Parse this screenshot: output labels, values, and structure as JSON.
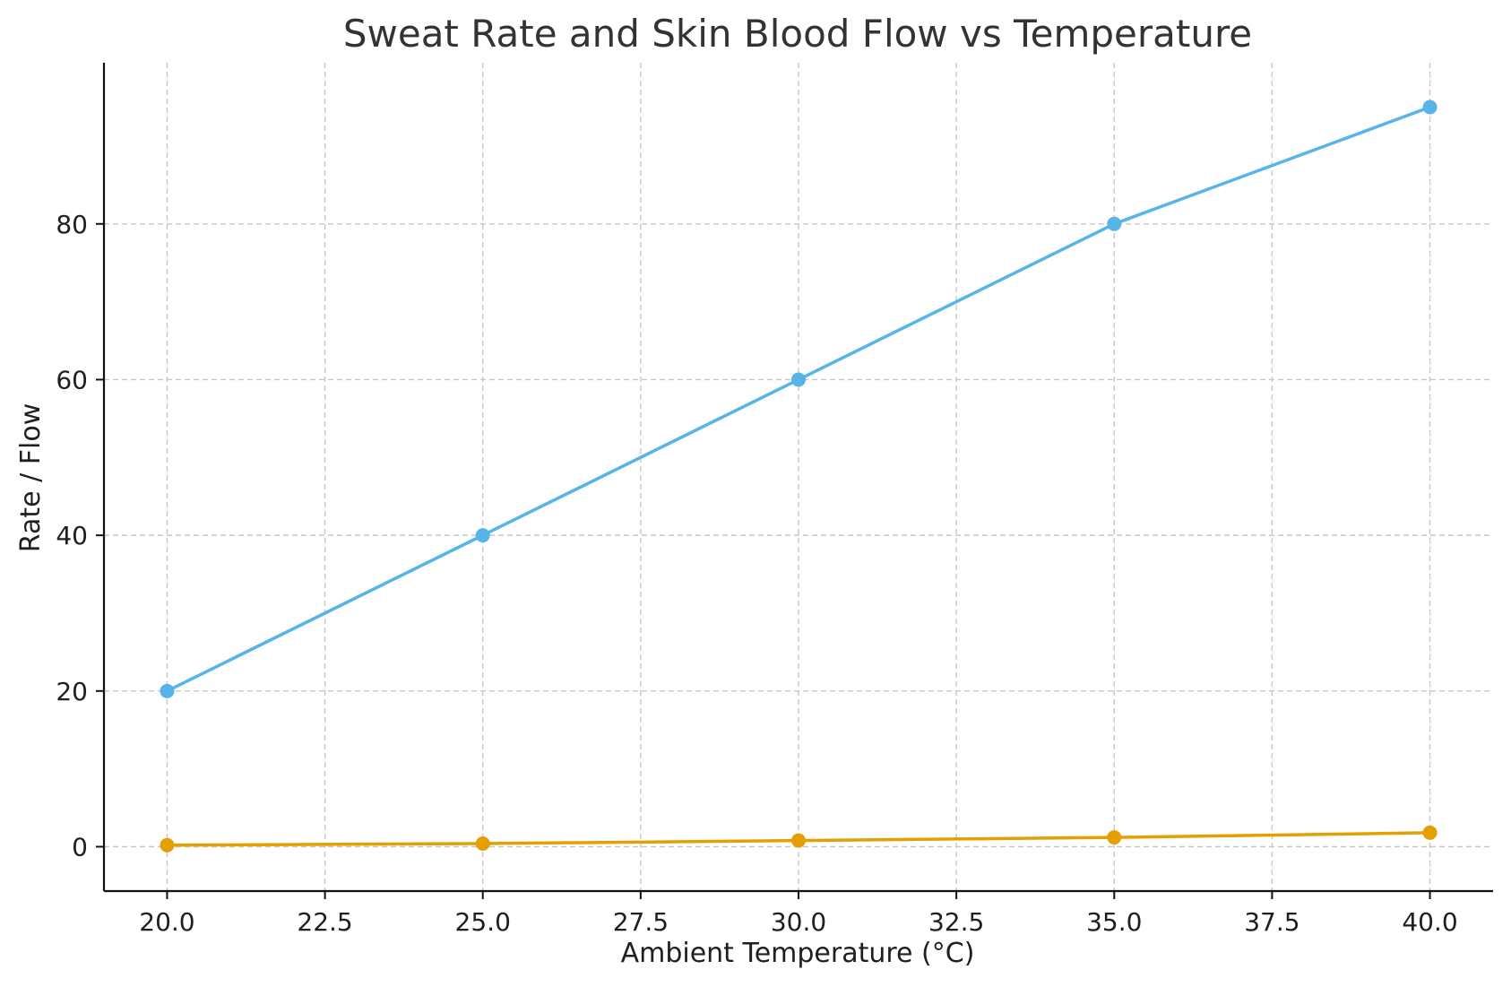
{
  "chart_data": {
    "type": "line",
    "title": "Sweat Rate and Skin Blood Flow vs Temperature",
    "xlabel": "Ambient Temperature (°C)",
    "ylabel": "Rate / Flow",
    "x": [
      20.0,
      25.0,
      30.0,
      35.0,
      40.0
    ],
    "xlim": [
      19.0,
      41.0
    ],
    "ylim": [
      -5.7,
      100.7
    ],
    "x_ticks": [
      "20.0",
      "22.5",
      "25.0",
      "27.5",
      "30.0",
      "32.5",
      "35.0",
      "37.5",
      "40.0"
    ],
    "y_ticks": [
      "0",
      "20",
      "40",
      "60",
      "80"
    ],
    "grid": true,
    "legend": "none",
    "series": [
      {
        "color": "#56b4e9",
        "values": [
          20,
          40,
          60,
          80,
          95
        ]
      },
      {
        "color": "#e69f00",
        "values": [
          0.2,
          0.4,
          0.8,
          1.2,
          1.8
        ]
      }
    ]
  }
}
